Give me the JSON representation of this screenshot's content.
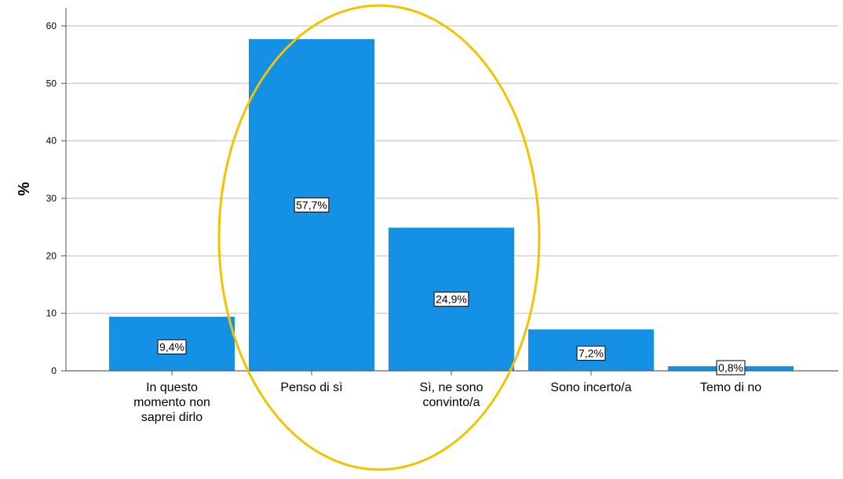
{
  "chart_data": {
    "type": "bar",
    "ylabel": "%",
    "ylim": [
      0,
      60
    ],
    "yticks": [
      "0",
      "10",
      "20",
      "30",
      "40",
      "50",
      "60"
    ],
    "grid": true,
    "categories": [
      [
        "In questo",
        "momento non",
        "saprei dirlo"
      ],
      [
        "Penso di sì"
      ],
      [
        "Sì, ne sono",
        "convinto/a"
      ],
      [
        "Sono incerto/a"
      ],
      [
        "Temo di no"
      ]
    ],
    "values": [
      9.4,
      57.7,
      24.9,
      7.2,
      0.8
    ],
    "data_labels": [
      "9,4%",
      "57,7%",
      "24,9%",
      "7,2%",
      "0,8%"
    ],
    "highlight": {
      "covers_categories": [
        1,
        2
      ],
      "shape": "ellipse"
    },
    "colors": {
      "bar": "#1490e4",
      "grid": "#d0d0d0",
      "axis": "#555555",
      "highlight": "#f2c300"
    }
  }
}
